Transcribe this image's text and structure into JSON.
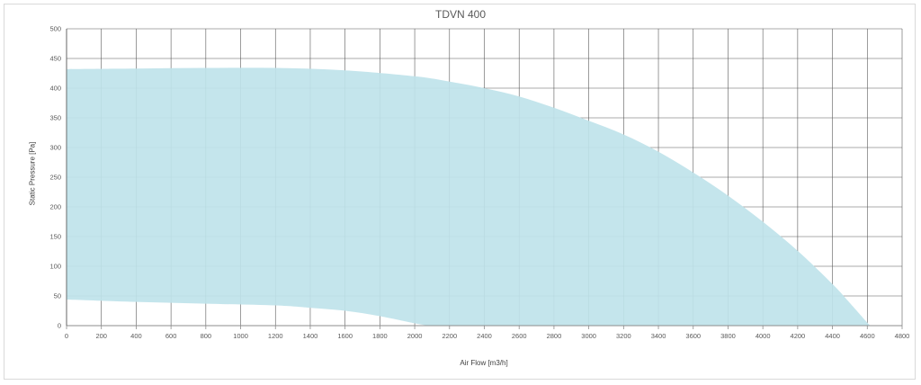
{
  "chart_data": {
    "type": "area",
    "title": "TDVN 400",
    "xlabel": "Air Flow [m3/h]",
    "ylabel": "Static Pressure [Pa]",
    "xlim": [
      0,
      4800
    ],
    "ylim": [
      0,
      500
    ],
    "x_ticks": [
      0,
      200,
      400,
      600,
      800,
      1000,
      1200,
      1400,
      1600,
      1800,
      2000,
      2200,
      2400,
      2600,
      2800,
      3000,
      3200,
      3400,
      3600,
      3800,
      4000,
      4200,
      4400,
      4600,
      4800
    ],
    "y_ticks": [
      0,
      50,
      100,
      150,
      200,
      250,
      300,
      350,
      400,
      450,
      500
    ],
    "grid": true,
    "fill_color": "#bfe3ea",
    "upper_curve": [
      {
        "x": 0,
        "y": 432
      },
      {
        "x": 400,
        "y": 433
      },
      {
        "x": 800,
        "y": 434
      },
      {
        "x": 1200,
        "y": 434
      },
      {
        "x": 1600,
        "y": 430
      },
      {
        "x": 2000,
        "y": 420
      },
      {
        "x": 2200,
        "y": 411
      },
      {
        "x": 2400,
        "y": 400
      },
      {
        "x": 2600,
        "y": 386
      },
      {
        "x": 2800,
        "y": 367
      },
      {
        "x": 3000,
        "y": 345
      },
      {
        "x": 3200,
        "y": 322
      },
      {
        "x": 3400,
        "y": 293
      },
      {
        "x": 3600,
        "y": 258
      },
      {
        "x": 3800,
        "y": 219
      },
      {
        "x": 4000,
        "y": 175
      },
      {
        "x": 4200,
        "y": 126
      },
      {
        "x": 4400,
        "y": 70
      },
      {
        "x": 4500,
        "y": 38
      },
      {
        "x": 4600,
        "y": 5
      },
      {
        "x": 4620,
        "y": 0
      }
    ],
    "lower_curve": [
      {
        "x": 0,
        "y": 44
      },
      {
        "x": 400,
        "y": 40
      },
      {
        "x": 800,
        "y": 37
      },
      {
        "x": 1200,
        "y": 34
      },
      {
        "x": 1400,
        "y": 30
      },
      {
        "x": 1600,
        "y": 25
      },
      {
        "x": 1800,
        "y": 16
      },
      {
        "x": 2000,
        "y": 4
      },
      {
        "x": 2080,
        "y": 0
      }
    ]
  }
}
